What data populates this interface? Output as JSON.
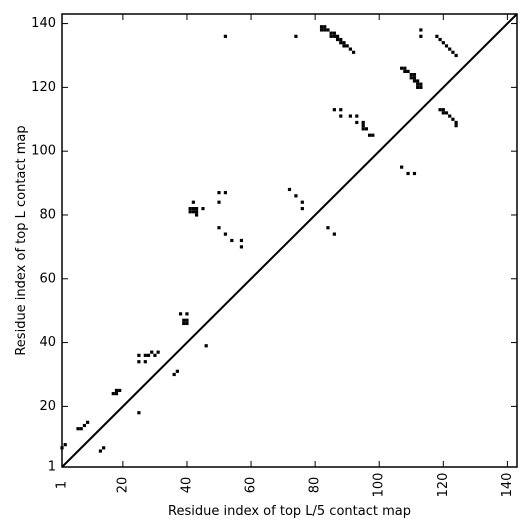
{
  "chart_data": {
    "type": "heatmap",
    "xlabel": "Residue index of top L/5 contact map",
    "ylabel": "Residue index of top L contact map",
    "xlim": [
      1,
      143
    ],
    "ylim": [
      1,
      143
    ],
    "xticks": [
      {
        "value": 1,
        "label": "1"
      },
      {
        "value": 20,
        "label": "20"
      },
      {
        "value": 40,
        "label": "40"
      },
      {
        "value": 60,
        "label": "60"
      },
      {
        "value": 80,
        "label": "80"
      },
      {
        "value": 100,
        "label": "100"
      },
      {
        "value": 120,
        "label": "120"
      },
      {
        "value": 140,
        "label": "140"
      }
    ],
    "yticks": [
      {
        "value": 1,
        "label": "1"
      },
      {
        "value": 20,
        "label": "20"
      },
      {
        "value": 40,
        "label": "40"
      },
      {
        "value": 60,
        "label": "60"
      },
      {
        "value": 80,
        "label": "80"
      },
      {
        "value": 100,
        "label": "100"
      },
      {
        "value": 120,
        "label": "120"
      },
      {
        "value": 140,
        "label": "140"
      }
    ],
    "diagonal": true,
    "grid": false,
    "marker_color": "#000000",
    "contacts": [
      [
        82,
        139
      ],
      [
        83,
        139
      ],
      [
        82,
        138
      ],
      [
        83,
        138
      ],
      [
        84,
        138
      ],
      [
        85,
        137
      ],
      [
        86,
        137
      ],
      [
        85,
        136
      ],
      [
        86,
        136
      ],
      [
        87,
        136
      ],
      [
        88,
        135
      ],
      [
        87,
        135
      ],
      [
        88,
        134
      ],
      [
        89,
        134
      ],
      [
        90,
        133
      ],
      [
        89,
        133
      ],
      [
        91,
        132
      ],
      [
        92,
        131
      ],
      [
        52,
        136
      ],
      [
        74,
        136
      ],
      [
        113,
        138
      ],
      [
        113,
        136
      ],
      [
        107,
        126
      ],
      [
        108,
        126
      ],
      [
        109,
        125
      ],
      [
        108,
        125
      ],
      [
        110,
        124
      ],
      [
        111,
        124
      ],
      [
        110,
        123
      ],
      [
        111,
        123
      ],
      [
        111,
        122
      ],
      [
        112,
        122
      ],
      [
        113,
        121
      ],
      [
        112,
        121
      ],
      [
        112,
        120
      ],
      [
        113,
        120
      ],
      [
        118,
        136
      ],
      [
        119,
        135
      ],
      [
        120,
        134
      ],
      [
        121,
        133
      ],
      [
        122,
        132
      ],
      [
        123,
        131
      ],
      [
        124,
        130
      ],
      [
        86,
        113
      ],
      [
        88,
        113
      ],
      [
        88,
        111
      ],
      [
        91,
        111
      ],
      [
        93,
        111
      ],
      [
        93,
        109
      ],
      [
        95,
        109
      ],
      [
        95,
        108
      ],
      [
        95,
        107
      ],
      [
        96,
        107
      ],
      [
        97,
        105
      ],
      [
        98,
        105
      ],
      [
        119,
        113
      ],
      [
        120,
        113
      ],
      [
        120,
        112
      ],
      [
        121,
        112
      ],
      [
        122,
        111
      ],
      [
        123,
        110
      ],
      [
        124,
        109
      ],
      [
        124,
        108
      ],
      [
        107,
        95
      ],
      [
        109,
        93
      ],
      [
        111,
        93
      ],
      [
        42,
        84
      ],
      [
        41,
        82
      ],
      [
        42,
        82
      ],
      [
        43,
        82
      ],
      [
        45,
        82
      ],
      [
        41,
        81
      ],
      [
        42,
        81
      ],
      [
        43,
        81
      ],
      [
        43,
        80
      ],
      [
        50,
        87
      ],
      [
        52,
        87
      ],
      [
        50,
        84
      ],
      [
        72,
        88
      ],
      [
        74,
        86
      ],
      [
        76,
        84
      ],
      [
        76,
        82
      ],
      [
        50,
        76
      ],
      [
        52,
        74
      ],
      [
        54,
        72
      ],
      [
        57,
        72
      ],
      [
        57,
        70
      ],
      [
        84,
        76
      ],
      [
        86,
        74
      ],
      [
        38,
        49
      ],
      [
        40,
        49
      ],
      [
        39,
        47
      ],
      [
        40,
        47
      ],
      [
        39,
        46
      ],
      [
        40,
        46
      ],
      [
        46,
        39
      ],
      [
        25,
        36
      ],
      [
        27,
        36
      ],
      [
        28,
        36
      ],
      [
        29,
        37
      ],
      [
        30,
        36
      ],
      [
        31,
        37
      ],
      [
        25,
        34
      ],
      [
        27,
        34
      ],
      [
        36,
        30
      ],
      [
        37,
        31
      ],
      [
        25,
        18
      ],
      [
        18,
        25
      ],
      [
        19,
        25
      ],
      [
        17,
        24
      ],
      [
        18,
        24
      ],
      [
        6,
        13
      ],
      [
        7,
        13
      ],
      [
        8,
        14
      ],
      [
        9,
        15
      ],
      [
        13,
        6
      ],
      [
        14,
        7
      ],
      [
        1,
        7
      ],
      [
        2,
        8
      ]
    ]
  }
}
